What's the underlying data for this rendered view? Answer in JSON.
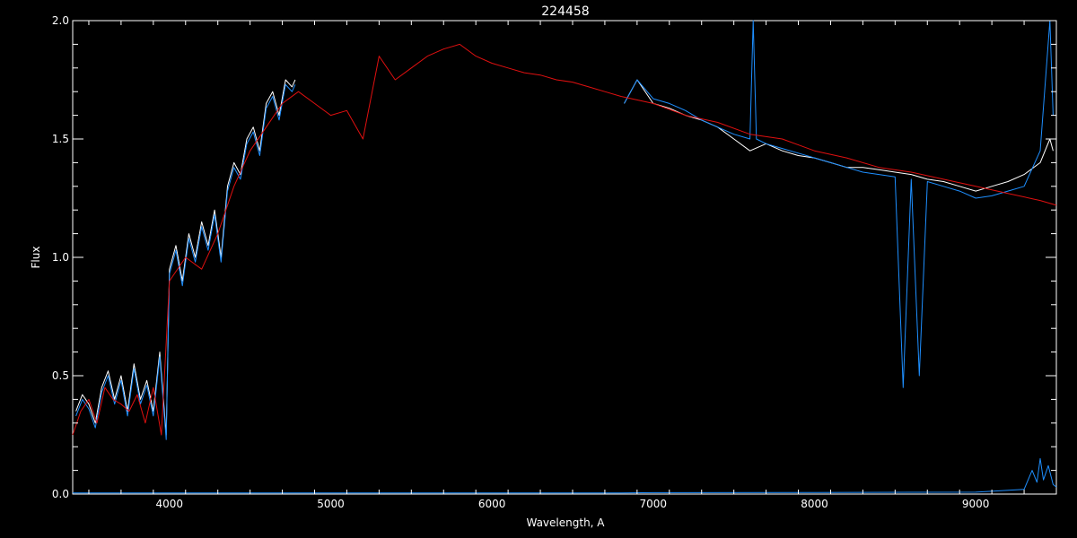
{
  "chart_data": {
    "type": "line",
    "title": "224458",
    "xlabel": "Wavelength, A",
    "ylabel": "Flux",
    "xlim": [
      3400,
      9500
    ],
    "ylim": [
      0.0,
      2.0
    ],
    "x_ticks": [
      4000,
      5000,
      6000,
      7000,
      8000,
      9000
    ],
    "x_tick_labels": [
      "4000",
      "5000",
      "6000",
      "7000",
      "8000",
      "9000"
    ],
    "y_ticks": [
      0.0,
      0.5,
      1.0,
      1.5,
      2.0
    ],
    "y_tick_labels": [
      "0.0",
      "0.5",
      "1.0",
      "1.5",
      "2.0"
    ],
    "grid": false,
    "colors": {
      "background": "#000000",
      "axes": "#ffffff",
      "observed": "#ffffff",
      "observed_overlay": "#1e8fff",
      "model": "#e01010",
      "error": "#1e8fff"
    },
    "series": [
      {
        "key": "observed_blue_segment",
        "color": "#ffffff",
        "x": [
          3420,
          3460,
          3500,
          3540,
          3580,
          3620,
          3660,
          3700,
          3740,
          3780,
          3820,
          3860,
          3900,
          3940,
          3980,
          4000,
          4040,
          4080,
          4120,
          4160,
          4200,
          4240,
          4280,
          4320,
          4360,
          4400,
          4440,
          4480,
          4520,
          4560,
          4600,
          4640,
          4680,
          4720,
          4760,
          4780
        ],
        "y": [
          0.35,
          0.42,
          0.38,
          0.3,
          0.45,
          0.52,
          0.4,
          0.5,
          0.35,
          0.55,
          0.4,
          0.48,
          0.35,
          0.6,
          0.25,
          0.95,
          1.05,
          0.9,
          1.1,
          1.0,
          1.15,
          1.05,
          1.2,
          1.0,
          1.3,
          1.4,
          1.35,
          1.5,
          1.55,
          1.45,
          1.65,
          1.7,
          1.6,
          1.75,
          1.72,
          1.75
        ]
      },
      {
        "key": "observed_red_segment",
        "color": "#ffffff",
        "x": [
          6820,
          6900,
          7000,
          7100,
          7200,
          7300,
          7400,
          7500,
          7600,
          7700,
          7800,
          7900,
          8000,
          8100,
          8200,
          8300,
          8400,
          8500,
          8600,
          8700,
          8800,
          8900,
          9000,
          9100,
          9200,
          9300,
          9400,
          9460,
          9480
        ],
        "y": [
          1.65,
          1.75,
          1.65,
          1.63,
          1.6,
          1.58,
          1.55,
          1.5,
          1.45,
          1.48,
          1.45,
          1.43,
          1.42,
          1.4,
          1.38,
          1.38,
          1.37,
          1.36,
          1.35,
          1.33,
          1.32,
          1.3,
          1.28,
          1.3,
          1.32,
          1.35,
          1.4,
          1.5,
          1.45
        ]
      },
      {
        "key": "observed_overlay_blue",
        "color": "#1e8fff",
        "x": [
          3420,
          3460,
          3500,
          3540,
          3580,
          3620,
          3660,
          3700,
          3740,
          3780,
          3820,
          3860,
          3900,
          3940,
          3980,
          4000,
          4040,
          4080,
          4120,
          4160,
          4200,
          4240,
          4280,
          4320,
          4360,
          4400,
          4440,
          4480,
          4520,
          4560,
          4600,
          4640,
          4680,
          4720,
          4760,
          4780
        ],
        "y": [
          0.33,
          0.4,
          0.36,
          0.28,
          0.43,
          0.5,
          0.38,
          0.48,
          0.33,
          0.53,
          0.38,
          0.46,
          0.33,
          0.58,
          0.23,
          0.93,
          1.03,
          0.88,
          1.08,
          0.98,
          1.13,
          1.03,
          1.18,
          0.98,
          1.28,
          1.38,
          1.33,
          1.48,
          1.53,
          1.43,
          1.63,
          1.68,
          1.58,
          1.73,
          1.7,
          1.73
        ]
      },
      {
        "key": "observed_overlay_red",
        "color": "#1e8fff",
        "x": [
          6820,
          6900,
          7000,
          7100,
          7200,
          7300,
          7400,
          7500,
          7600,
          7620,
          7640,
          7700,
          7800,
          7900,
          8000,
          8100,
          8200,
          8300,
          8400,
          8500,
          8550,
          8600,
          8650,
          8700,
          8800,
          8900,
          9000,
          9100,
          9200,
          9300,
          9400,
          9460,
          9480
        ],
        "y": [
          1.65,
          1.75,
          1.67,
          1.65,
          1.62,
          1.58,
          1.55,
          1.52,
          1.5,
          2.0,
          1.5,
          1.48,
          1.46,
          1.44,
          1.42,
          1.4,
          1.38,
          1.36,
          1.35,
          1.34,
          0.45,
          1.33,
          0.5,
          1.32,
          1.3,
          1.28,
          1.25,
          1.26,
          1.28,
          1.3,
          1.45,
          2.0,
          1.6
        ]
      },
      {
        "key": "model",
        "color": "#e01010",
        "x": [
          3400,
          3450,
          3500,
          3550,
          3600,
          3650,
          3700,
          3750,
          3800,
          3850,
          3900,
          3950,
          4000,
          4100,
          4200,
          4300,
          4400,
          4500,
          4600,
          4700,
          4800,
          4900,
          5000,
          5100,
          5200,
          5300,
          5400,
          5500,
          5600,
          5700,
          5800,
          5900,
          6000,
          6100,
          6200,
          6300,
          6400,
          6500,
          6600,
          6700,
          6800,
          7000,
          7200,
          7400,
          7600,
          7800,
          8000,
          8200,
          8400,
          8600,
          8800,
          9000,
          9200,
          9400,
          9500
        ],
        "y": [
          0.25,
          0.35,
          0.4,
          0.3,
          0.45,
          0.4,
          0.38,
          0.35,
          0.42,
          0.3,
          0.45,
          0.25,
          0.9,
          1.0,
          0.95,
          1.1,
          1.3,
          1.45,
          1.55,
          1.65,
          1.7,
          1.65,
          1.6,
          1.62,
          1.5,
          1.85,
          1.75,
          1.8,
          1.85,
          1.88,
          1.9,
          1.85,
          1.82,
          1.8,
          1.78,
          1.77,
          1.75,
          1.74,
          1.72,
          1.7,
          1.68,
          1.65,
          1.6,
          1.57,
          1.52,
          1.5,
          1.45,
          1.42,
          1.38,
          1.36,
          1.33,
          1.3,
          1.27,
          1.24,
          1.22
        ]
      },
      {
        "key": "error",
        "color": "#1e8fff",
        "x": [
          3400,
          4000,
          5000,
          6000,
          6800,
          7000,
          8000,
          9000,
          9300,
          9350,
          9380,
          9400,
          9420,
          9450,
          9480,
          9500
        ],
        "y": [
          0.005,
          0.005,
          0.005,
          0.005,
          0.005,
          0.006,
          0.007,
          0.008,
          0.02,
          0.1,
          0.05,
          0.15,
          0.06,
          0.12,
          0.04,
          0.03
        ]
      }
    ]
  }
}
